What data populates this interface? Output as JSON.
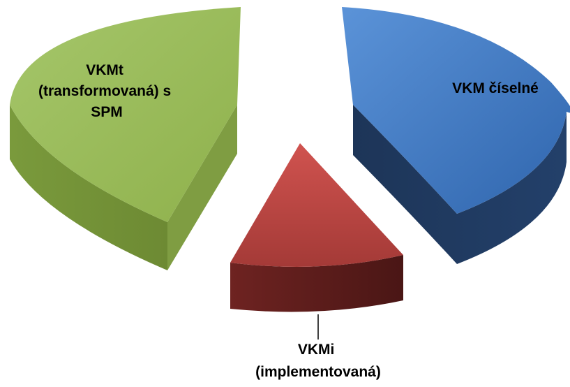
{
  "chart_data": {
    "type": "pie",
    "style": "3d-exploded",
    "title": "",
    "slices": [
      {
        "label_lines": [
          "VKM číselné"
        ],
        "value": 46,
        "color": "#3f76c0"
      },
      {
        "label_lines": [
          "VKMi",
          "(implementovaná)"
        ],
        "value": 11,
        "color": "#c0504d"
      },
      {
        "label_lines": [
          "VKMt",
          "(transformovaná) s",
          "SPM"
        ],
        "value": 43,
        "color": "#9bbb59"
      }
    ],
    "legend": "none",
    "grid": false
  }
}
